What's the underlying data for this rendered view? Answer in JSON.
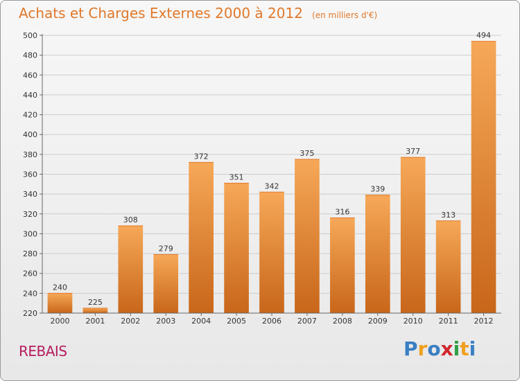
{
  "title": "Achats et Charges Externes 2000 à 2012",
  "subtitle": "(en milliers d'€)",
  "commune": "REBAIS",
  "logo": {
    "text": "Proxiti",
    "letters": [
      {
        "ch": "P",
        "color": "#3a7fc4"
      },
      {
        "ch": "r",
        "color": "#f0a020"
      },
      {
        "ch": "o",
        "color": "#3a7fc4"
      },
      {
        "ch": "x",
        "color": "#d0282e"
      },
      {
        "ch": "i",
        "color": "#2f9e44"
      },
      {
        "ch": "t",
        "color": "#f0a020"
      },
      {
        "ch": "i",
        "color": "#3a7fc4"
      }
    ]
  },
  "colors": {
    "bar_light": "#f6a858",
    "bar_dark": "#c8661a",
    "grid": "#cccccc",
    "axis": "#666666",
    "title": "#e0782a",
    "commune": "#b51d5e"
  },
  "chart_data": {
    "type": "bar",
    "categories": [
      "2000",
      "2001",
      "2002",
      "2003",
      "2004",
      "2005",
      "2006",
      "2007",
      "2008",
      "2009",
      "2010",
      "2011",
      "2012"
    ],
    "values": [
      240,
      225,
      308,
      279,
      372,
      351,
      342,
      375,
      316,
      339,
      377,
      313,
      494
    ],
    "ylim": [
      220,
      500
    ],
    "yticks": [
      220,
      240,
      260,
      280,
      300,
      320,
      340,
      360,
      380,
      400,
      420,
      440,
      460,
      480,
      500
    ],
    "grid": true,
    "legend": "none"
  }
}
